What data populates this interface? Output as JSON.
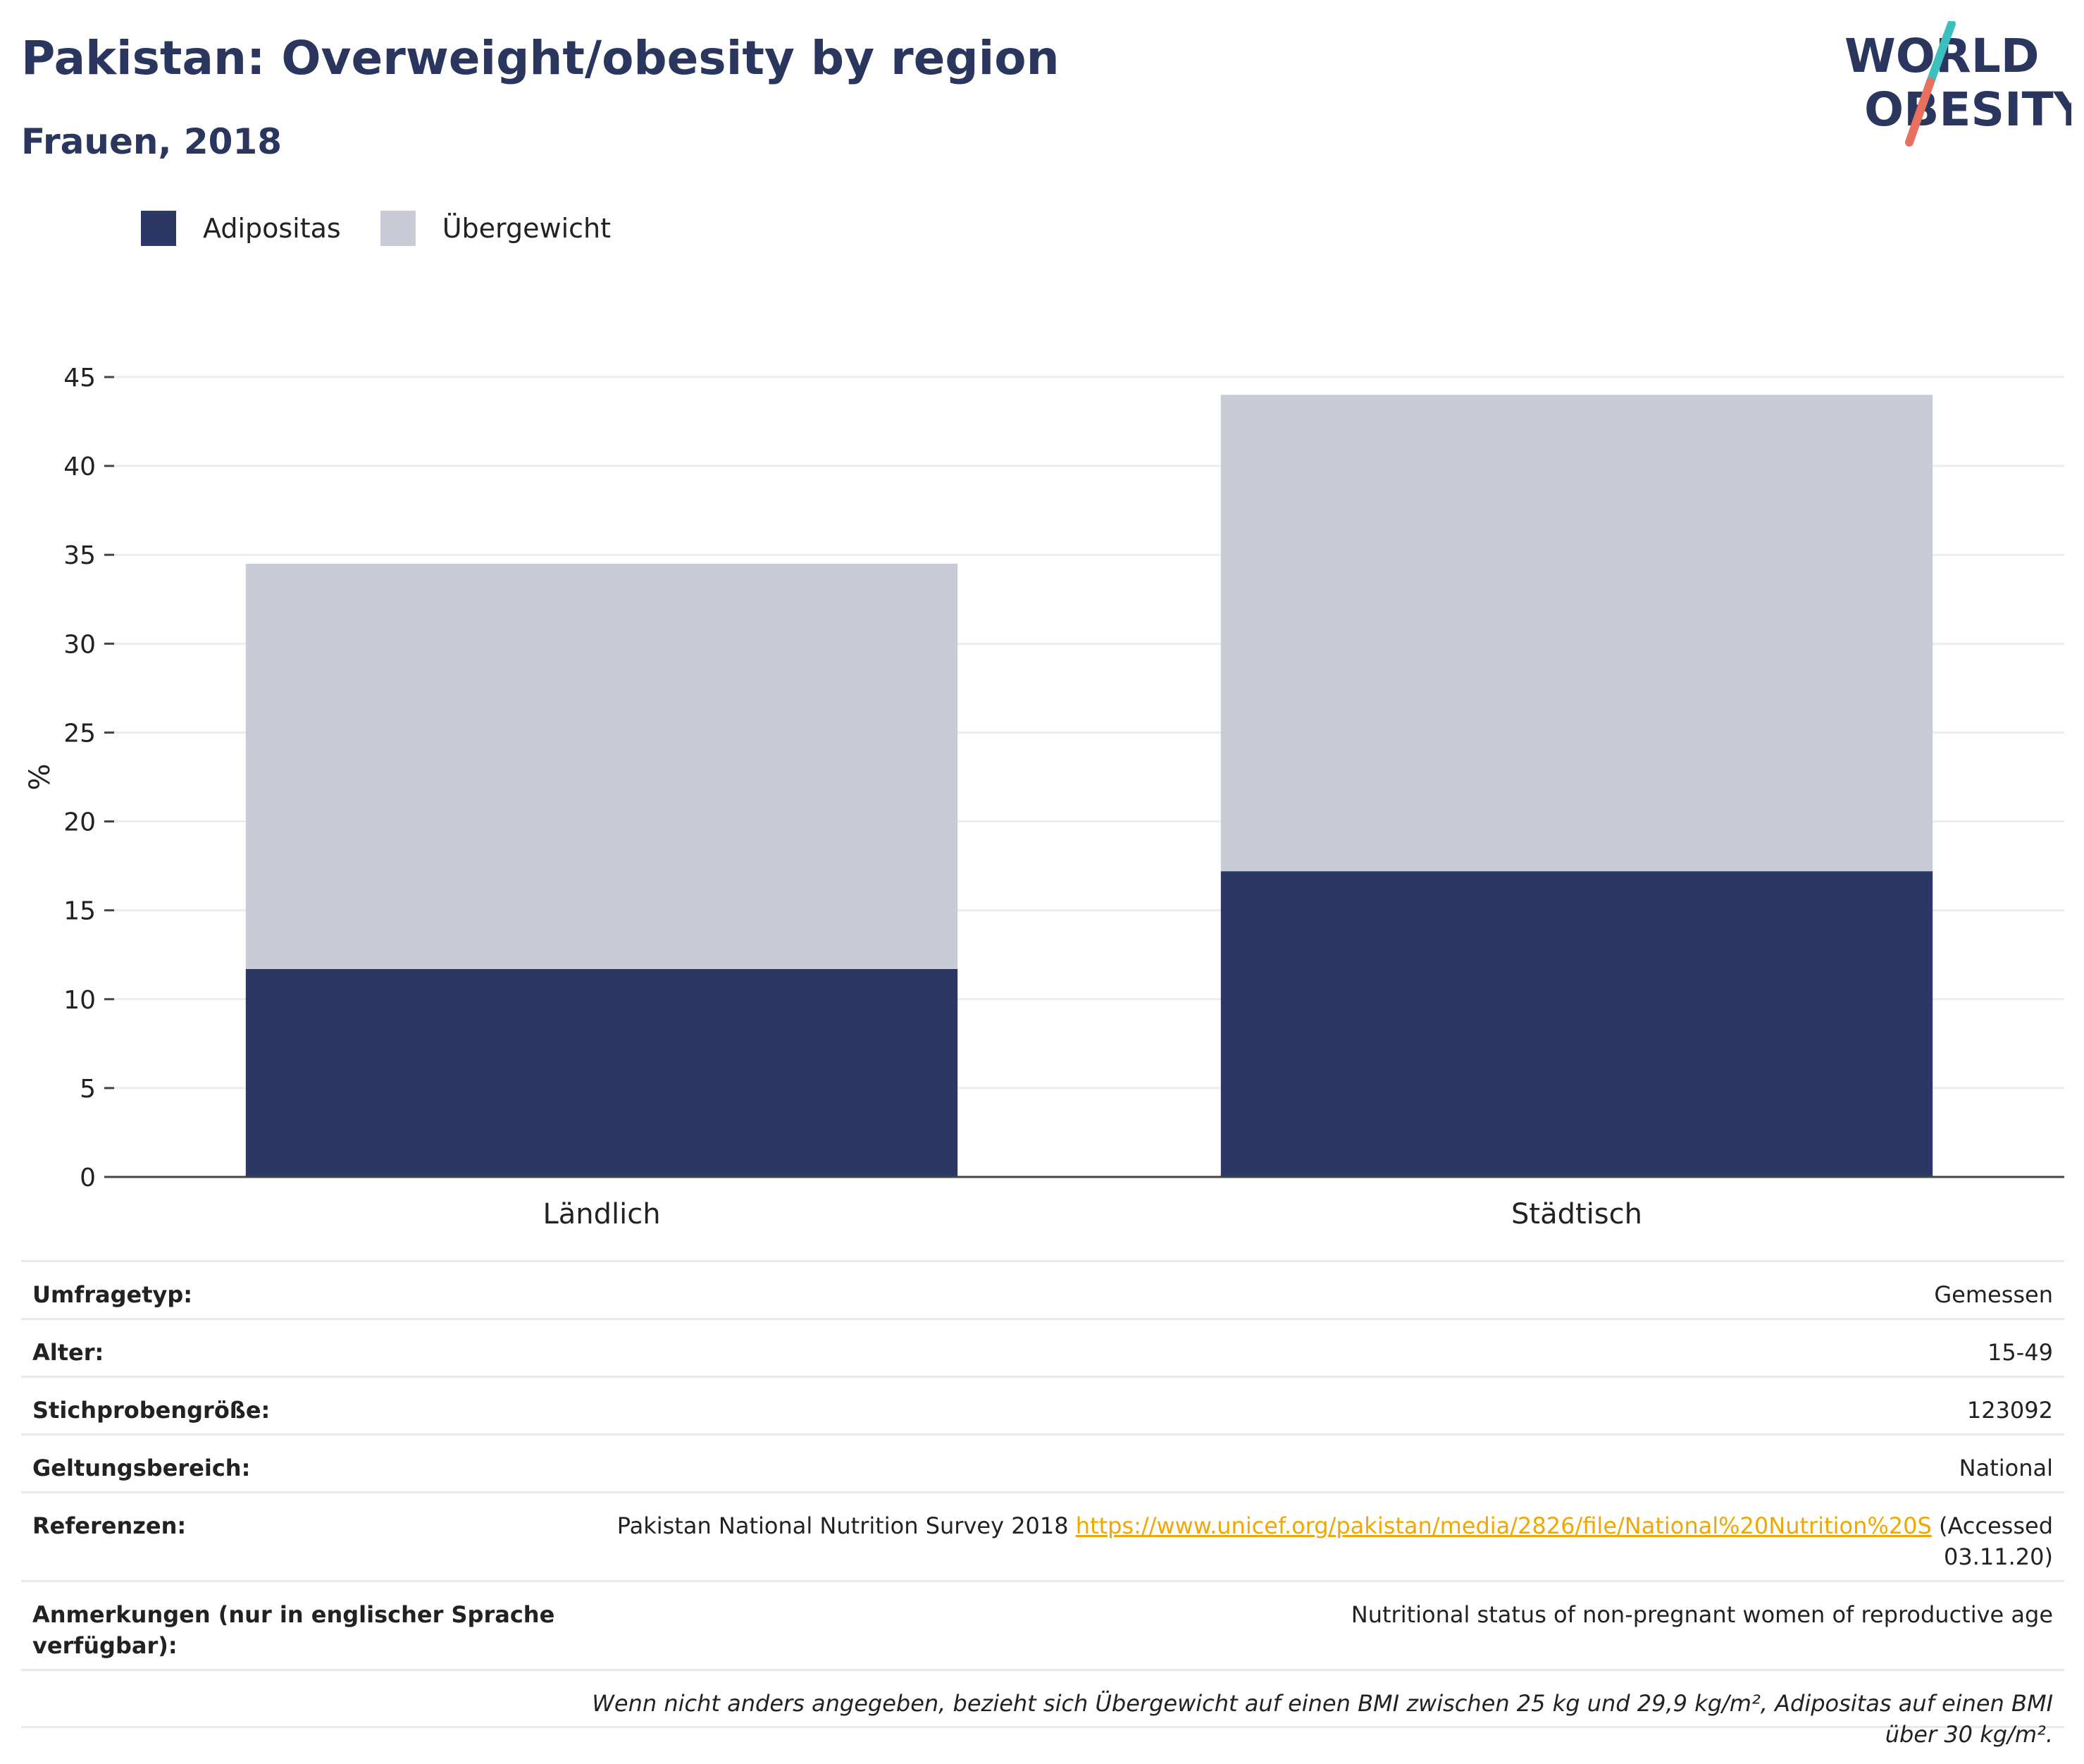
{
  "header": {
    "title": "Pakistan: Overweight/obesity by region",
    "subtitle": "Frauen, 2018",
    "logo_line1": "WORLD",
    "logo_line2": "OBESITY"
  },
  "colors": {
    "adipositas": "#2b3764",
    "uebergewicht": "#c9cbd7",
    "title": "#2b365f",
    "link": "#f0a800",
    "logo_teal": "#3bbfbf",
    "logo_coral": "#e8705e"
  },
  "legend": [
    {
      "label": "Adipositas",
      "color": "#2b3764"
    },
    {
      "label": "Übergewicht",
      "color": "#c9cbd7"
    }
  ],
  "chart_data": {
    "type": "bar",
    "stacked": true,
    "categories": [
      "Ländlich",
      "Städtisch"
    ],
    "series": [
      {
        "name": "Adipositas",
        "values": [
          11.7,
          17.2
        ]
      },
      {
        "name": "Übergewicht",
        "values": [
          22.8,
          26.8
        ]
      }
    ],
    "ylabel": "%",
    "ylim": [
      0,
      45
    ],
    "yticks": [
      0,
      5,
      10,
      15,
      20,
      25,
      30,
      35,
      40,
      45
    ],
    "grid": true,
    "legend_position": "top-left"
  },
  "meta": {
    "rows": [
      {
        "key": "Umfragetyp:",
        "value": "Gemessen"
      },
      {
        "key": "Alter:",
        "value": "15-49"
      },
      {
        "key": "Stichprobengröße:",
        "value": "123092"
      },
      {
        "key": "Geltungsbereich:",
        "value": "National"
      }
    ],
    "references": {
      "key": "Referenzen:",
      "text_before": "Pakistan National Nutrition Survey 2018 ",
      "link": "https://www.unicef.org/pakistan/media/2826/file/National%20Nutrition%20S",
      "text_after": " (Accessed 03.11.20)"
    },
    "notes": {
      "key": "Anmerkungen (nur in englischer Sprache verfügbar):",
      "value": "Nutritional status of non-pregnant women of reproductive age"
    },
    "footnote": "Wenn nicht anders angegeben, bezieht sich Übergewicht auf einen BMI zwischen 25 kg und 29,9 kg/m², Adipositas auf einen BMI über 30 kg/m²."
  }
}
